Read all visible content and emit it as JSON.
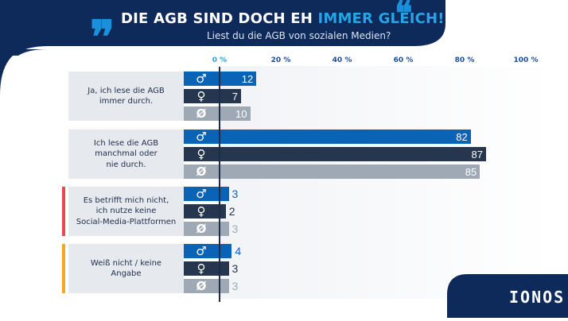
{
  "header": {
    "title_part1": "DIE AGB SIND DOCH EH ",
    "title_accent": "IMMER GLEICH!",
    "subtitle": "Liest du die AGB von sozialen Medien?"
  },
  "colors": {
    "male": "#0b63b5",
    "female": "#26364f",
    "average": "#9ea9b5",
    "banner": "#0e2a5a",
    "accent_red": "#e8474f",
    "accent_orange": "#f5a623"
  },
  "icons": {
    "male": "♂",
    "female": "♀",
    "average": "Ø",
    "quote_open": "❞",
    "quote_close": "❝"
  },
  "brand": {
    "logo": "IONOS"
  },
  "chart_data": {
    "type": "bar",
    "orientation": "horizontal",
    "title": "DIE AGB SIND DOCH EH IMMER GLEICH!",
    "subtitle": "Liest du die AGB von sozialen Medien?",
    "xlim": [
      0,
      100
    ],
    "xticks": [
      0,
      20,
      40,
      60,
      80,
      100
    ],
    "xtick_labels": [
      "0 %",
      "20 %",
      "40 %",
      "60 %",
      "80 %",
      "100 %"
    ],
    "categories": [
      "Ja, ich lese die AGB\nimmer durch.",
      "Ich lese die AGB\nmanchmal oder\nnie durch.",
      "Es betrifft mich nicht,\nich nutze keine\nSocial-Media-Plattformen",
      "Weiß nicht / keine\nAngabe"
    ],
    "series": [
      {
        "name": "männlich",
        "symbol": "♂",
        "values": [
          12,
          82,
          3,
          4
        ]
      },
      {
        "name": "weiblich",
        "symbol": "♀",
        "values": [
          7,
          87,
          2,
          3
        ]
      },
      {
        "name": "Durchschnitt",
        "symbol": "Ø",
        "values": [
          10,
          85,
          3,
          3
        ]
      }
    ]
  }
}
